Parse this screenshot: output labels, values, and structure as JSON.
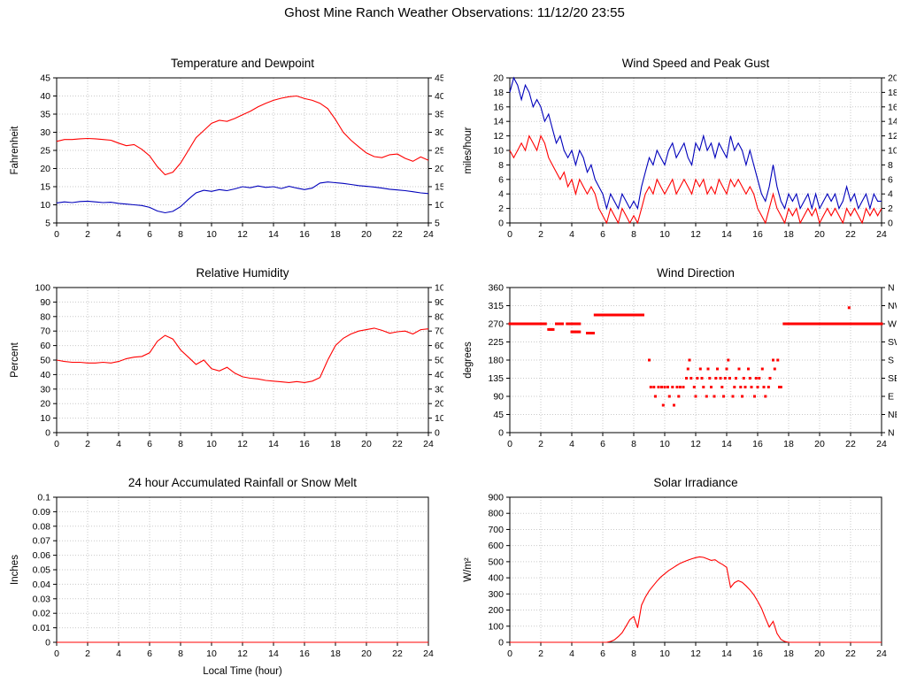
{
  "page": {
    "title": "Ghost Mine Ranch Weather Observations: 11/12/20 23:55"
  },
  "chart_data": [
    {
      "id": "temperature-dewpoint",
      "type": "line",
      "title": "Temperature and Dewpoint",
      "ylabel": "Fahrenheit",
      "ylim": [
        5,
        45
      ],
      "ystep": 5,
      "xlim": [
        0,
        24
      ],
      "xstep": 2,
      "mirror_y": true,
      "series": [
        {
          "name": "Temperature",
          "color": "#ff0000",
          "x0": 0,
          "dx": 0.5,
          "values": [
            27.5,
            28,
            28,
            28.2,
            28.3,
            28.2,
            28,
            27.8,
            27,
            26.3,
            26.6,
            25.3,
            23.5,
            20.5,
            18.3,
            19,
            21.5,
            25,
            28.5,
            30.5,
            32.5,
            33.3,
            33,
            33.8,
            34.8,
            35.8,
            37,
            38,
            38.8,
            39.4,
            39.8,
            40,
            39.3,
            38.8,
            38,
            36.5,
            33.5,
            30,
            27.8,
            26,
            24.3,
            23.3,
            23,
            23.8,
            24,
            22.8,
            22,
            23.2,
            22.3
          ]
        },
        {
          "name": "Dewpoint",
          "color": "#0000bb",
          "x0": 0,
          "dx": 0.5,
          "values": [
            10.5,
            10.8,
            10.6,
            10.9,
            11,
            10.8,
            10.6,
            10.7,
            10.4,
            10.2,
            10,
            9.8,
            9.3,
            8.3,
            7.8,
            8.2,
            9.5,
            11.5,
            13.3,
            14,
            13.7,
            14.2,
            13.9,
            14.4,
            15,
            14.7,
            15.2,
            14.8,
            15,
            14.5,
            15.1,
            14.6,
            14.2,
            14.6,
            16,
            16.3,
            16.1,
            15.9,
            15.6,
            15.3,
            15.1,
            14.9,
            14.6,
            14.3,
            14.1,
            13.9,
            13.6,
            13.3,
            13.1
          ]
        }
      ]
    },
    {
      "id": "wind-speed-gust",
      "type": "line",
      "title": "Wind Speed and Peak Gust",
      "ylabel": "miles/hour",
      "ylim": [
        0,
        20
      ],
      "ystep": 2,
      "xlim": [
        0,
        24
      ],
      "xstep": 2,
      "mirror_y": true,
      "series": [
        {
          "name": "Peak Gust",
          "color": "#0000bb",
          "x0": 0,
          "dx": 0.25,
          "values": [
            18,
            20,
            19,
            17,
            19,
            18,
            16,
            17,
            16,
            14,
            15,
            13,
            11,
            12,
            10,
            9,
            10,
            8,
            10,
            9,
            7,
            8,
            6,
            5,
            4,
            2,
            4,
            3,
            2,
            4,
            3,
            2,
            3,
            2,
            5,
            7,
            9,
            8,
            10,
            9,
            8,
            10,
            11,
            9,
            10,
            11,
            9,
            8,
            11,
            10,
            12,
            10,
            11,
            9,
            11,
            10,
            9,
            12,
            10,
            11,
            10,
            8,
            10,
            8,
            6,
            4,
            3,
            5,
            8,
            5,
            3,
            2,
            4,
            3,
            4,
            2,
            3,
            4,
            2,
            4,
            2,
            3,
            4,
            3,
            4,
            2,
            3,
            5,
            3,
            4,
            2,
            3,
            4,
            2,
            4,
            3,
            3
          ]
        },
        {
          "name": "Wind Speed",
          "color": "#ff0000",
          "x0": 0,
          "dx": 0.25,
          "values": [
            10,
            9,
            10,
            11,
            10,
            12,
            11,
            10,
            12,
            11,
            9,
            8,
            7,
            6,
            7,
            5,
            6,
            4,
            6,
            5,
            4,
            5,
            4,
            2,
            1,
            0,
            2,
            1,
            0,
            2,
            1,
            0,
            1,
            0,
            2,
            4,
            5,
            4,
            6,
            5,
            4,
            5,
            6,
            4,
            5,
            6,
            5,
            4,
            6,
            5,
            6,
            4,
            5,
            4,
            6,
            5,
            4,
            6,
            5,
            6,
            5,
            4,
            5,
            4,
            2,
            1,
            0,
            2,
            4,
            2,
            1,
            0,
            2,
            1,
            2,
            0,
            1,
            2,
            1,
            2,
            0,
            1,
            2,
            1,
            2,
            1,
            0,
            2,
            1,
            2,
            1,
            0,
            2,
            1,
            2,
            1,
            2
          ]
        }
      ]
    },
    {
      "id": "relative-humidity",
      "type": "line",
      "title": "Relative Humidity",
      "ylabel": "Percent",
      "ylim": [
        0,
        100
      ],
      "ystep": 10,
      "xlim": [
        0,
        24
      ],
      "xstep": 2,
      "mirror_y": true,
      "series": [
        {
          "name": "Relative Humidity",
          "color": "#ff0000",
          "x0": 0,
          "dx": 0.5,
          "values": [
            50,
            49,
            48.5,
            48.5,
            48,
            48,
            48.5,
            48,
            49,
            51,
            52,
            52.5,
            55,
            63,
            67,
            64.5,
            57,
            52,
            47,
            50,
            44,
            42.5,
            45,
            41,
            38.5,
            37.5,
            37,
            36,
            35.5,
            35,
            34.5,
            35.2,
            34.5,
            35.5,
            38,
            50,
            60,
            65,
            68,
            70,
            71,
            72,
            70.5,
            68.5,
            69.5,
            70,
            68,
            71,
            71.5
          ]
        }
      ]
    },
    {
      "id": "wind-direction",
      "type": "scatter",
      "title": "Wind Direction",
      "ylabel": "degrees",
      "ylim": [
        0,
        360
      ],
      "ystep": 45,
      "xlim": [
        0,
        24
      ],
      "xstep": 2,
      "right_tick_labels": [
        "N",
        "NE",
        "E",
        "SE",
        "S",
        "SW",
        "W",
        "NW",
        "N"
      ],
      "series": [
        {
          "name": "Wind Direction",
          "color": "#ff0000",
          "runs": [
            {
              "y": 270,
              "x0": 0.0,
              "x1": 2.3,
              "step": 0.1
            },
            {
              "y": 256,
              "x0": 2.5,
              "x1": 2.8,
              "step": 0.1
            },
            {
              "y": 270,
              "x0": 3.0,
              "x1": 3.4,
              "step": 0.1
            },
            {
              "y": 270,
              "x0": 3.7,
              "x1": 4.5,
              "step": 0.1
            },
            {
              "y": 250,
              "x0": 4.0,
              "x1": 4.5,
              "step": 0.1
            },
            {
              "y": 247,
              "x0": 5.0,
              "x1": 5.4,
              "step": 0.1
            },
            {
              "y": 292,
              "x0": 5.5,
              "x1": 8.6,
              "step": 0.1
            },
            {
              "y": 270,
              "x0": 17.7,
              "x1": 24.0,
              "step": 0.1
            }
          ],
          "points": [
            [
              9.0,
              180
            ],
            [
              9.1,
              113
            ],
            [
              9.3,
              113
            ],
            [
              9.4,
              90
            ],
            [
              9.6,
              113
            ],
            [
              9.8,
              113
            ],
            [
              9.9,
              68
            ],
            [
              10.0,
              113
            ],
            [
              10.2,
              113
            ],
            [
              10.3,
              90
            ],
            [
              10.5,
              113
            ],
            [
              10.6,
              68
            ],
            [
              10.8,
              113
            ],
            [
              10.9,
              90
            ],
            [
              11.0,
              113
            ],
            [
              11.2,
              113
            ],
            [
              11.4,
              135
            ],
            [
              11.5,
              158
            ],
            [
              11.6,
              180
            ],
            [
              11.7,
              135
            ],
            [
              11.9,
              113
            ],
            [
              12.0,
              90
            ],
            [
              12.1,
              135
            ],
            [
              12.3,
              158
            ],
            [
              12.4,
              135
            ],
            [
              12.5,
              113
            ],
            [
              12.7,
              90
            ],
            [
              12.8,
              158
            ],
            [
              12.9,
              135
            ],
            [
              13.0,
              113
            ],
            [
              13.2,
              90
            ],
            [
              13.3,
              135
            ],
            [
              13.4,
              158
            ],
            [
              13.6,
              135
            ],
            [
              13.7,
              113
            ],
            [
              13.8,
              90
            ],
            [
              13.9,
              135
            ],
            [
              14.0,
              158
            ],
            [
              14.1,
              180
            ],
            [
              14.2,
              135
            ],
            [
              14.4,
              90
            ],
            [
              14.5,
              113
            ],
            [
              14.6,
              135
            ],
            [
              14.8,
              158
            ],
            [
              14.9,
              113
            ],
            [
              15.0,
              90
            ],
            [
              15.1,
              135
            ],
            [
              15.2,
              113
            ],
            [
              15.4,
              158
            ],
            [
              15.5,
              135
            ],
            [
              15.6,
              113
            ],
            [
              15.8,
              90
            ],
            [
              15.9,
              135
            ],
            [
              16.0,
              113
            ],
            [
              16.1,
              135
            ],
            [
              16.3,
              158
            ],
            [
              16.4,
              113
            ],
            [
              16.5,
              90
            ],
            [
              16.7,
              113
            ],
            [
              16.8,
              135
            ],
            [
              17.0,
              180
            ],
            [
              17.1,
              158
            ],
            [
              17.3,
              180
            ],
            [
              17.4,
              113
            ],
            [
              17.5,
              113
            ],
            [
              21.9,
              310
            ]
          ]
        }
      ]
    },
    {
      "id": "rainfall",
      "type": "line",
      "title": "24 hour Accumulated Rainfall or Snow Melt",
      "ylabel": "Inches",
      "xlabel": "Local Time (hour)",
      "ylim": [
        0,
        0.1
      ],
      "ystep": 0.01,
      "xlim": [
        0,
        24
      ],
      "xstep": 2,
      "series": [
        {
          "name": "Rainfall",
          "color": "#ff0000",
          "x0": 0,
          "dx": 24,
          "values": [
            0,
            0
          ]
        }
      ]
    },
    {
      "id": "solar-irradiance",
      "type": "line",
      "title": "Solar Irradiance",
      "ylabel": "W/m²",
      "ylim": [
        0,
        900
      ],
      "ystep": 100,
      "xlim": [
        0,
        24
      ],
      "xstep": 2,
      "series": [
        {
          "name": "Solar Irradiance",
          "color": "#ff0000",
          "x0": 0,
          "dx": 0.25,
          "values": [
            0,
            0,
            0,
            0,
            0,
            0,
            0,
            0,
            0,
            0,
            0,
            0,
            0,
            0,
            0,
            0,
            0,
            0,
            0,
            0,
            0,
            0,
            0,
            0,
            0,
            0,
            5,
            15,
            35,
            60,
            100,
            140,
            160,
            90,
            230,
            280,
            320,
            350,
            380,
            405,
            425,
            445,
            460,
            475,
            490,
            500,
            510,
            518,
            525,
            530,
            527,
            518,
            508,
            512,
            495,
            482,
            465,
            340,
            370,
            382,
            372,
            350,
            325,
            295,
            255,
            210,
            150,
            95,
            130,
            55,
            18,
            5,
            0,
            0,
            0,
            0,
            0,
            0,
            0,
            0,
            0,
            0,
            0,
            0,
            0,
            0,
            0,
            0,
            0,
            0,
            0,
            0,
            0,
            0,
            0,
            0,
            0
          ]
        }
      ]
    }
  ]
}
